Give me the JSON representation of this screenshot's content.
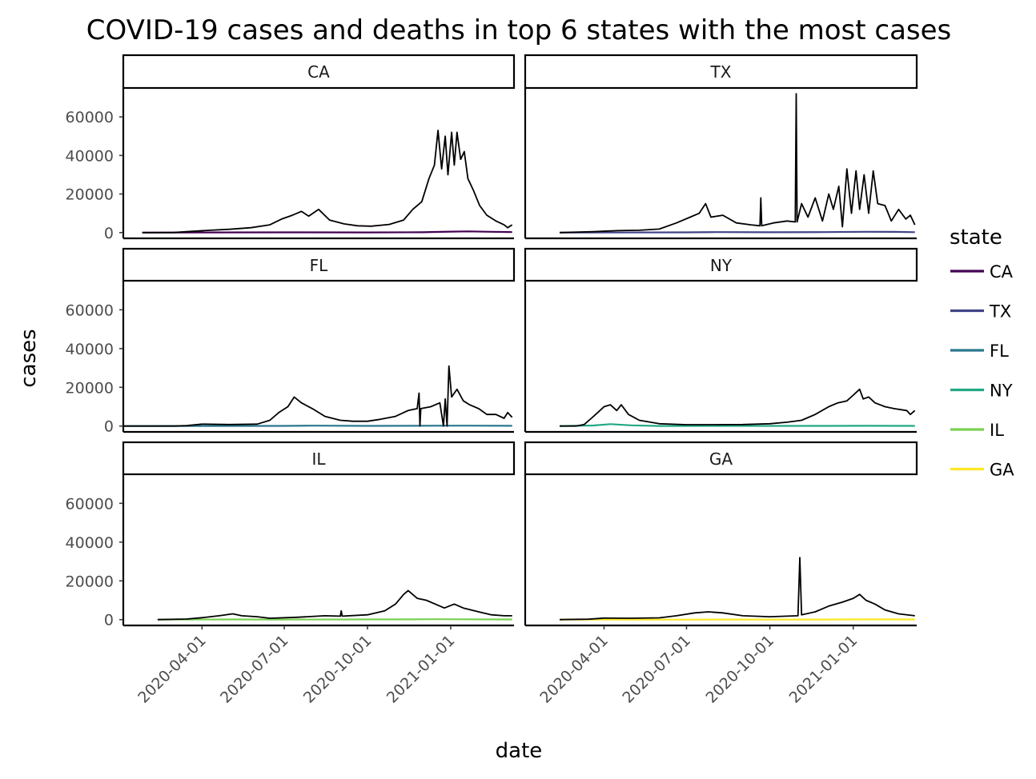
{
  "chart_data": {
    "type": "line",
    "title": "COVID-19 cases and deaths in top 6 states with the most cases",
    "xlabel": "date",
    "ylabel": "cases",
    "x_ticks": [
      "2020-04-01",
      "2020-07-01",
      "2020-10-01",
      "2021-01-01"
    ],
    "y_ticks": [
      0,
      20000,
      40000,
      60000
    ],
    "ylim": [
      -3000,
      75000
    ],
    "xlim": [
      "2020-01-05",
      "2021-03-12"
    ],
    "grid": false,
    "legend": {
      "title": "state",
      "position": "right",
      "entries": [
        {
          "label": "CA",
          "color": "#440154"
        },
        {
          "label": "TX",
          "color": "#414487"
        },
        {
          "label": "FL",
          "color": "#2a788e"
        },
        {
          "label": "NY",
          "color": "#22a884"
        },
        {
          "label": "IL",
          "color": "#7ad151"
        },
        {
          "label": "GA",
          "color": "#fde725"
        }
      ]
    },
    "panels": [
      {
        "state": "CA",
        "color": "#440154",
        "cases": [
          [
            "2020-01-26",
            0
          ],
          [
            "2020-03-01",
            30
          ],
          [
            "2020-03-20",
            600
          ],
          [
            "2020-04-10",
            1200
          ],
          [
            "2020-05-01",
            1700
          ],
          [
            "2020-05-25",
            2500
          ],
          [
            "2020-06-15",
            4000
          ],
          [
            "2020-06-28",
            7000
          ],
          [
            "2020-07-10",
            9000
          ],
          [
            "2020-07-20",
            11000
          ],
          [
            "2020-07-28",
            8500
          ],
          [
            "2020-08-08",
            12000
          ],
          [
            "2020-08-20",
            6500
          ],
          [
            "2020-09-05",
            4500
          ],
          [
            "2020-09-20",
            3500
          ],
          [
            "2020-10-05",
            3300
          ],
          [
            "2020-10-25",
            4200
          ],
          [
            "2020-11-10",
            6500
          ],
          [
            "2020-11-20",
            12000
          ],
          [
            "2020-11-30",
            16000
          ],
          [
            "2020-12-08",
            28000
          ],
          [
            "2020-12-14",
            35000
          ],
          [
            "2020-12-18",
            53000
          ],
          [
            "2020-12-22",
            33000
          ],
          [
            "2020-12-26",
            50000
          ],
          [
            "2020-12-29",
            30000
          ],
          [
            "2021-01-02",
            52000
          ],
          [
            "2021-01-05",
            35000
          ],
          [
            "2021-01-08",
            52000
          ],
          [
            "2021-01-12",
            38000
          ],
          [
            "2021-01-16",
            42000
          ],
          [
            "2021-01-20",
            28000
          ],
          [
            "2021-01-26",
            22000
          ],
          [
            "2021-02-02",
            14000
          ],
          [
            "2021-02-10",
            9000
          ],
          [
            "2021-02-20",
            6000
          ],
          [
            "2021-03-01",
            4000
          ],
          [
            "2021-03-05",
            2500
          ],
          [
            "2021-03-10",
            4000
          ]
        ],
        "deaths": [
          [
            "2020-01-26",
            0
          ],
          [
            "2020-04-01",
            80
          ],
          [
            "2020-07-01",
            100
          ],
          [
            "2020-10-01",
            90
          ],
          [
            "2020-12-01",
            150
          ],
          [
            "2021-01-01",
            500
          ],
          [
            "2021-01-20",
            600
          ],
          [
            "2021-02-15",
            400
          ],
          [
            "2021-03-10",
            250
          ]
        ]
      },
      {
        "state": "TX",
        "color": "#414487",
        "cases": [
          [
            "2020-02-12",
            0
          ],
          [
            "2020-03-20",
            500
          ],
          [
            "2020-04-15",
            1000
          ],
          [
            "2020-05-10",
            1200
          ],
          [
            "2020-06-01",
            1800
          ],
          [
            "2020-06-20",
            5000
          ],
          [
            "2020-07-05",
            8000
          ],
          [
            "2020-07-15",
            10000
          ],
          [
            "2020-07-22",
            15000
          ],
          [
            "2020-07-28",
            8000
          ],
          [
            "2020-08-10",
            9000
          ],
          [
            "2020-08-25",
            5000
          ],
          [
            "2020-09-10",
            4000
          ],
          [
            "2020-09-20",
            3500
          ],
          [
            "2020-09-21",
            18000
          ],
          [
            "2020-09-22",
            3500
          ],
          [
            "2020-10-05",
            5000
          ],
          [
            "2020-10-20",
            6000
          ],
          [
            "2020-10-29",
            5500
          ],
          [
            "2020-10-30",
            72000
          ],
          [
            "2020-10-31",
            5500
          ],
          [
            "2020-11-05",
            15000
          ],
          [
            "2020-11-12",
            8000
          ],
          [
            "2020-11-20",
            18000
          ],
          [
            "2020-11-28",
            6000
          ],
          [
            "2020-12-05",
            20000
          ],
          [
            "2020-12-10",
            12000
          ],
          [
            "2020-12-16",
            24000
          ],
          [
            "2020-12-20",
            3000
          ],
          [
            "2020-12-25",
            33000
          ],
          [
            "2020-12-30",
            10000
          ],
          [
            "2021-01-04",
            32000
          ],
          [
            "2021-01-08",
            12000
          ],
          [
            "2021-01-13",
            30000
          ],
          [
            "2021-01-18",
            10000
          ],
          [
            "2021-01-23",
            32000
          ],
          [
            "2021-01-28",
            15000
          ],
          [
            "2021-02-05",
            14000
          ],
          [
            "2021-02-12",
            6000
          ],
          [
            "2021-02-20",
            12000
          ],
          [
            "2021-02-28",
            7000
          ],
          [
            "2021-03-05",
            9000
          ],
          [
            "2021-03-10",
            4000
          ]
        ],
        "deaths": [
          [
            "2020-02-12",
            0
          ],
          [
            "2020-07-01",
            100
          ],
          [
            "2020-08-01",
            250
          ],
          [
            "2020-10-01",
            150
          ],
          [
            "2020-12-01",
            250
          ],
          [
            "2021-01-15",
            400
          ],
          [
            "2021-02-15",
            350
          ],
          [
            "2021-03-10",
            200
          ]
        ]
      },
      {
        "state": "FL",
        "color": "#2a788e",
        "cases": [
          [
            "2020-01-05",
            0
          ],
          [
            "2020-03-01",
            0
          ],
          [
            "2020-03-15",
            200
          ],
          [
            "2020-04-01",
            1000
          ],
          [
            "2020-05-01",
            800
          ],
          [
            "2020-06-01",
            1000
          ],
          [
            "2020-06-15",
            3000
          ],
          [
            "2020-06-25",
            7000
          ],
          [
            "2020-07-05",
            10000
          ],
          [
            "2020-07-12",
            15000
          ],
          [
            "2020-07-20",
            12000
          ],
          [
            "2020-08-01",
            9000
          ],
          [
            "2020-08-15",
            5000
          ],
          [
            "2020-09-01",
            3000
          ],
          [
            "2020-09-15",
            2500
          ],
          [
            "2020-10-01",
            2500
          ],
          [
            "2020-10-15",
            3500
          ],
          [
            "2020-11-01",
            5000
          ],
          [
            "2020-11-15",
            8000
          ],
          [
            "2020-11-25",
            9000
          ],
          [
            "2020-11-27",
            17000
          ],
          [
            "2020-11-28",
            0
          ],
          [
            "2020-11-29",
            9000
          ],
          [
            "2020-12-10",
            10000
          ],
          [
            "2020-12-20",
            12000
          ],
          [
            "2020-12-24",
            0
          ],
          [
            "2020-12-26",
            14000
          ],
          [
            "2020-12-28",
            0
          ],
          [
            "2020-12-30",
            31000
          ],
          [
            "2021-01-02",
            15000
          ],
          [
            "2021-01-08",
            19000
          ],
          [
            "2021-01-15",
            13000
          ],
          [
            "2021-01-22",
            11000
          ],
          [
            "2021-02-01",
            9000
          ],
          [
            "2021-02-10",
            6000
          ],
          [
            "2021-02-20",
            6000
          ],
          [
            "2021-03-01",
            4000
          ],
          [
            "2021-03-05",
            7000
          ],
          [
            "2021-03-10",
            4500
          ]
        ],
        "deaths": [
          [
            "2020-01-05",
            0
          ],
          [
            "2020-07-01",
            100
          ],
          [
            "2020-08-01",
            200
          ],
          [
            "2020-10-01",
            100
          ],
          [
            "2021-01-15",
            200
          ],
          [
            "2021-03-10",
            150
          ]
        ]
      },
      {
        "state": "NY",
        "color": "#22a884",
        "cases": [
          [
            "2020-02-12",
            0
          ],
          [
            "2020-03-01",
            0
          ],
          [
            "2020-03-10",
            800
          ],
          [
            "2020-03-18",
            4000
          ],
          [
            "2020-03-25",
            7000
          ],
          [
            "2020-04-01",
            10000
          ],
          [
            "2020-04-08",
            11000
          ],
          [
            "2020-04-15",
            8000
          ],
          [
            "2020-04-20",
            11000
          ],
          [
            "2020-04-28",
            6000
          ],
          [
            "2020-05-10",
            3000
          ],
          [
            "2020-06-01",
            1200
          ],
          [
            "2020-07-01",
            700
          ],
          [
            "2020-08-01",
            700
          ],
          [
            "2020-09-01",
            800
          ],
          [
            "2020-10-01",
            1200
          ],
          [
            "2020-10-20",
            2000
          ],
          [
            "2020-11-05",
            3000
          ],
          [
            "2020-11-20",
            6000
          ],
          [
            "2020-12-05",
            10000
          ],
          [
            "2020-12-15",
            12000
          ],
          [
            "2020-12-25",
            13000
          ],
          [
            "2021-01-01",
            16000
          ],
          [
            "2021-01-08",
            19000
          ],
          [
            "2021-01-12",
            14000
          ],
          [
            "2021-01-18",
            15000
          ],
          [
            "2021-01-25",
            12000
          ],
          [
            "2021-02-05",
            10000
          ],
          [
            "2021-02-15",
            9000
          ],
          [
            "2021-03-01",
            8000
          ],
          [
            "2021-03-05",
            6000
          ],
          [
            "2021-03-10",
            8000
          ]
        ],
        "deaths": [
          [
            "2020-02-12",
            0
          ],
          [
            "2020-03-20",
            300
          ],
          [
            "2020-04-08",
            1000
          ],
          [
            "2020-05-01",
            400
          ],
          [
            "2020-06-01",
            50
          ],
          [
            "2020-12-01",
            80
          ],
          [
            "2021-01-15",
            150
          ],
          [
            "2021-03-10",
            100
          ]
        ]
      },
      {
        "state": "IL",
        "color": "#7ad151",
        "cases": [
          [
            "2020-02-12",
            0
          ],
          [
            "2020-03-15",
            300
          ],
          [
            "2020-04-01",
            1000
          ],
          [
            "2020-04-20",
            2000
          ],
          [
            "2020-05-05",
            3000
          ],
          [
            "2020-05-15",
            2000
          ],
          [
            "2020-06-01",
            1500
          ],
          [
            "2020-06-15",
            700
          ],
          [
            "2020-07-15",
            1200
          ],
          [
            "2020-08-15",
            2000
          ],
          [
            "2020-09-01",
            1800
          ],
          [
            "2020-09-02",
            4500
          ],
          [
            "2020-09-03",
            1800
          ],
          [
            "2020-10-01",
            2500
          ],
          [
            "2020-10-20",
            4500
          ],
          [
            "2020-11-01",
            8000
          ],
          [
            "2020-11-10",
            13000
          ],
          [
            "2020-11-15",
            15000
          ],
          [
            "2020-11-25",
            11000
          ],
          [
            "2020-12-05",
            10000
          ],
          [
            "2020-12-15",
            8000
          ],
          [
            "2020-12-25",
            6000
          ],
          [
            "2021-01-05",
            8000
          ],
          [
            "2021-01-15",
            6000
          ],
          [
            "2021-02-01",
            4000
          ],
          [
            "2021-02-15",
            2500
          ],
          [
            "2021-03-01",
            2000
          ],
          [
            "2021-03-10",
            2000
          ]
        ],
        "deaths": [
          [
            "2020-02-12",
            0
          ],
          [
            "2020-05-01",
            100
          ],
          [
            "2020-07-01",
            50
          ],
          [
            "2020-11-20",
            150
          ],
          [
            "2020-12-10",
            200
          ],
          [
            "2021-03-10",
            80
          ]
        ]
      },
      {
        "state": "GA",
        "color": "#fde725",
        "cases": [
          [
            "2020-02-12",
            0
          ],
          [
            "2020-03-15",
            200
          ],
          [
            "2020-04-01",
            800
          ],
          [
            "2020-05-01",
            700
          ],
          [
            "2020-06-01",
            900
          ],
          [
            "2020-06-20",
            2000
          ],
          [
            "2020-07-10",
            3500
          ],
          [
            "2020-07-25",
            4000
          ],
          [
            "2020-08-10",
            3500
          ],
          [
            "2020-09-01",
            2000
          ],
          [
            "2020-10-01",
            1500
          ],
          [
            "2020-11-01",
            2000
          ],
          [
            "2020-11-03",
            32000
          ],
          [
            "2020-11-05",
            2500
          ],
          [
            "2020-11-20",
            4000
          ],
          [
            "2020-12-05",
            7000
          ],
          [
            "2020-12-20",
            9000
          ],
          [
            "2021-01-01",
            11000
          ],
          [
            "2021-01-08",
            13000
          ],
          [
            "2021-01-15",
            10000
          ],
          [
            "2021-01-25",
            8000
          ],
          [
            "2021-02-05",
            5000
          ],
          [
            "2021-02-20",
            3000
          ],
          [
            "2021-03-10",
            2000
          ]
        ],
        "deaths": [
          [
            "2020-02-12",
            0
          ],
          [
            "2020-07-01",
            30
          ],
          [
            "2020-08-01",
            60
          ],
          [
            "2020-12-01",
            60
          ],
          [
            "2021-01-20",
            120
          ],
          [
            "2021-03-10",
            80
          ]
        ]
      }
    ]
  }
}
